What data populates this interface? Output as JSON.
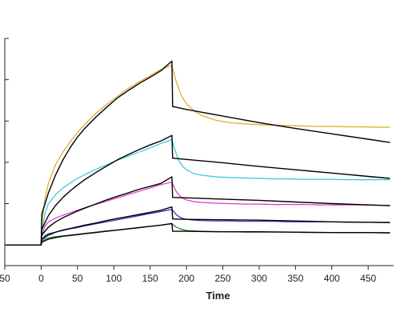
{
  "chart_data": {
    "type": "line",
    "title": "",
    "xlabel": "Time",
    "ylabel": "",
    "xlim": [
      -50,
      485
    ],
    "ylim": [
      -5,
      50
    ],
    "xticks": [
      -50,
      0,
      50,
      100,
      150,
      200,
      250,
      300,
      350,
      400,
      450
    ],
    "xtick_labels": [
      "50",
      "0",
      "50",
      "100",
      "150",
      "200",
      "250",
      "300",
      "350",
      "400",
      "450"
    ],
    "yticks": [
      0,
      10,
      20,
      30,
      40,
      50
    ],
    "grid": false,
    "legend": "none",
    "series": [
      {
        "color": "#e0a820",
        "x": [
          -50,
          0,
          1,
          5,
          10,
          20,
          30,
          40,
          50,
          60,
          75,
          90,
          105,
          120,
          135,
          150,
          165,
          180,
          185,
          190,
          195,
          200,
          210,
          220,
          240,
          260,
          280,
          300,
          320,
          340,
          360,
          380,
          400,
          420,
          440,
          460,
          480
        ],
        "y": [
          0,
          0,
          5,
          11,
          15,
          19.5,
          22.5,
          25,
          27.2,
          29.2,
          31.8,
          34,
          36,
          37.9,
          39.5,
          41,
          42.5,
          43.5,
          40,
          37.5,
          35.5,
          34.2,
          32.5,
          31.4,
          30.2,
          29.6,
          29.3,
          29.1,
          29,
          28.9,
          28.8,
          28.7,
          28.7,
          28.6,
          28.6,
          28.5,
          28.5
        ]
      },
      {
        "color": "#30c8d8",
        "x": [
          -50,
          0,
          1,
          5,
          10,
          20,
          30,
          40,
          50,
          60,
          75,
          90,
          105,
          120,
          135,
          150,
          165,
          180,
          185,
          190,
          195,
          200,
          210,
          220,
          240,
          260,
          280,
          300,
          320,
          340,
          360,
          380,
          400,
          420,
          440,
          460,
          480
        ],
        "y": [
          0,
          0,
          3,
          7.5,
          10,
          12.2,
          13.8,
          15,
          16.1,
          17,
          18.3,
          19.4,
          20.5,
          21.5,
          22.5,
          23.5,
          24.6,
          25.5,
          22.5,
          20.3,
          19,
          18.2,
          17.3,
          16.9,
          16.5,
          16.3,
          16.2,
          16.1,
          16,
          16,
          15.9,
          15.9,
          15.9,
          15.8,
          15.8,
          15.8,
          15.8
        ]
      },
      {
        "color": "#d838c8",
        "x": [
          -50,
          0,
          1,
          5,
          10,
          20,
          30,
          40,
          50,
          60,
          75,
          90,
          105,
          120,
          135,
          150,
          165,
          180,
          185,
          190,
          195,
          200,
          210,
          220,
          240,
          260,
          280,
          300,
          320,
          340,
          360,
          380,
          400,
          420,
          440,
          460,
          480
        ],
        "y": [
          0,
          0,
          2,
          4.5,
          5.6,
          6.5,
          7.2,
          7.8,
          8.4,
          9,
          9.8,
          10.6,
          11.4,
          12.2,
          13,
          13.8,
          14.6,
          15.2,
          13.2,
          12,
          11.3,
          10.9,
          10.5,
          10.3,
          10.1,
          10,
          9.9,
          9.9,
          9.8,
          9.8,
          9.8,
          9.7,
          9.7,
          9.7,
          9.7,
          9.6,
          9.6
        ]
      },
      {
        "color": "#2a2ab8",
        "x": [
          -50,
          0,
          1,
          5,
          10,
          20,
          30,
          40,
          50,
          60,
          75,
          90,
          105,
          120,
          135,
          150,
          165,
          180,
          185,
          190,
          195,
          200,
          210,
          220,
          240,
          260,
          280,
          300,
          320,
          340,
          360,
          380,
          400,
          420,
          440,
          460,
          480
        ],
        "y": [
          0,
          0,
          1.2,
          2.2,
          2.7,
          3.1,
          3.5,
          3.9,
          4.2,
          4.6,
          5.1,
          5.6,
          6.1,
          6.6,
          7.1,
          7.6,
          8.1,
          8.6,
          7.5,
          6.8,
          6.4,
          6.2,
          6,
          5.9,
          5.8,
          5.8,
          5.7,
          5.7,
          5.7,
          5.6,
          5.6,
          5.6,
          5.6,
          5.5,
          5.5,
          5.5,
          5.5
        ]
      },
      {
        "color": "#1e7a1e",
        "x": [
          -50,
          0,
          1,
          5,
          10,
          20,
          30,
          40,
          50,
          60,
          75,
          90,
          105,
          120,
          135,
          150,
          165,
          180,
          185,
          190,
          195,
          200,
          210,
          220,
          240,
          260,
          280,
          300,
          320,
          340,
          360,
          380,
          400,
          420,
          440,
          460,
          480
        ],
        "y": [
          0,
          0,
          0.8,
          1.4,
          1.7,
          2,
          2.2,
          2.4,
          2.6,
          2.8,
          3.1,
          3.4,
          3.6,
          3.9,
          4.2,
          4.5,
          4.8,
          5.1,
          4.4,
          4,
          3.7,
          3.5,
          3.4,
          3.3,
          3.2,
          3.2,
          3.1,
          3.1,
          3.1,
          3.1,
          3,
          3,
          3,
          3,
          3,
          3,
          3
        ]
      },
      {
        "color": "#000000",
        "x": [
          -50,
          0,
          1,
          10,
          20,
          30,
          40,
          50,
          60,
          75,
          90,
          105,
          120,
          135,
          150,
          165,
          180,
          181,
          200,
          250,
          300,
          350,
          400,
          450,
          480
        ],
        "y": [
          0,
          0,
          7.5,
          12.6,
          17,
          20.6,
          23.6,
          26.1,
          28.2,
          30.9,
          33.3,
          35.6,
          37.4,
          39.1,
          40.6,
          42.2,
          44.5,
          33.5,
          32.8,
          31.2,
          29.6,
          28.2,
          26.9,
          25.6,
          24.8
        ]
      },
      {
        "color": "#000000",
        "x": [
          -50,
          0,
          1,
          10,
          20,
          30,
          40,
          50,
          60,
          75,
          90,
          105,
          120,
          135,
          150,
          165,
          180,
          181,
          200,
          250,
          300,
          350,
          400,
          450,
          480
        ],
        "y": [
          0,
          0,
          3.8,
          7.1,
          9.6,
          11.5,
          13.1,
          14.5,
          15.8,
          17.5,
          19.1,
          20.6,
          21.9,
          23.1,
          24.2,
          25.2,
          26.5,
          21,
          20.7,
          19.9,
          19,
          18.2,
          17.4,
          16.6,
          16.1
        ]
      },
      {
        "color": "#000000",
        "x": [
          -50,
          0,
          1,
          10,
          20,
          30,
          40,
          50,
          60,
          75,
          90,
          105,
          120,
          135,
          150,
          165,
          180,
          181,
          200,
          250,
          300,
          350,
          400,
          450,
          480
        ],
        "y": [
          0,
          0,
          2.4,
          4.3,
          5.6,
          6.6,
          7.4,
          8.2,
          8.9,
          9.9,
          10.9,
          11.8,
          12.6,
          13.5,
          14.2,
          14.9,
          16.5,
          11.5,
          11.4,
          11.1,
          10.8,
          10.4,
          10,
          9.7,
          9.5
        ]
      },
      {
        "color": "#000000",
        "x": [
          -50,
          0,
          1,
          10,
          20,
          30,
          40,
          50,
          60,
          75,
          90,
          105,
          120,
          135,
          150,
          165,
          180,
          181,
          200,
          250,
          300,
          350,
          400,
          450,
          480
        ],
        "y": [
          0,
          0,
          1.4,
          2.4,
          3.1,
          3.6,
          4,
          4.4,
          4.8,
          5.3,
          5.9,
          6.4,
          6.9,
          7.4,
          7.9,
          8.4,
          9.2,
          6.3,
          6.2,
          6.1,
          6,
          5.8,
          5.6,
          5.5,
          5.4
        ]
      },
      {
        "color": "#000000",
        "x": [
          -50,
          0,
          1,
          10,
          20,
          30,
          40,
          50,
          60,
          75,
          90,
          105,
          120,
          135,
          150,
          165,
          180,
          181,
          200,
          250,
          300,
          350,
          400,
          450,
          480
        ],
        "y": [
          0,
          0,
          0.7,
          1.4,
          1.8,
          2.1,
          2.3,
          2.5,
          2.7,
          3,
          3.3,
          3.6,
          3.9,
          4.2,
          4.5,
          4.8,
          5.2,
          3.3,
          3.3,
          3.2,
          3.2,
          3.1,
          3,
          3,
          2.9
        ]
      }
    ]
  }
}
